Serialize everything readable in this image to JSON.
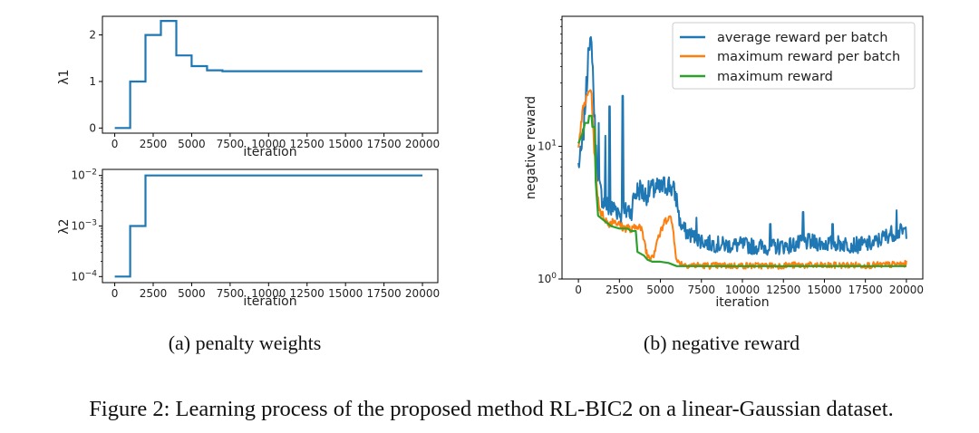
{
  "subcaptions": {
    "a": "(a) penalty weights",
    "b": "(b) negative reward"
  },
  "figure_caption": "Figure 2: Learning process of the proposed method RL-BIC2 on a linear-Gaussian dataset.",
  "chart_data": [
    {
      "id": "lambda1",
      "type": "line",
      "xlabel": "iteration",
      "ylabel": "λ1",
      "xlim": [
        -800,
        21000
      ],
      "ylim": [
        -0.11,
        2.4
      ],
      "xticks": [
        0,
        2500,
        5000,
        7500,
        10000,
        12500,
        15000,
        17500,
        20000
      ],
      "yticks": [
        0,
        1,
        2
      ],
      "color": "#1f77b4",
      "series": [
        {
          "x": [
            0,
            1000,
            1000,
            2000,
            2000,
            3000,
            3000,
            4000,
            4000,
            5000,
            5000,
            6000,
            6000,
            7000,
            7000,
            20000
          ],
          "y": [
            0,
            0,
            1,
            1,
            2,
            2,
            2.3,
            2.3,
            1.56,
            1.56,
            1.33,
            1.33,
            1.24,
            1.24,
            1.22,
            1.22
          ]
        }
      ]
    },
    {
      "id": "lambda2",
      "type": "line",
      "scale_y": "log",
      "xlabel": "iteration",
      "ylabel": "λ2",
      "xlim": [
        -800,
        21000
      ],
      "ylim_log10": [
        -4.12,
        -1.88
      ],
      "xticks": [
        0,
        2500,
        5000,
        7500,
        10000,
        12500,
        15000,
        17500,
        20000
      ],
      "yticks": [
        0.0001,
        0.001,
        0.01
      ],
      "ytick_labels": [
        {
          "base": "10",
          "exp": "−4"
        },
        {
          "base": "10",
          "exp": "−3"
        },
        {
          "base": "10",
          "exp": "−2"
        }
      ],
      "color": "#1f77b4",
      "series": [
        {
          "x": [
            0,
            1000,
            1000,
            2000,
            2000,
            20000
          ],
          "y": [
            0.0001,
            0.0001,
            0.001,
            0.001,
            0.01,
            0.01
          ]
        }
      ]
    },
    {
      "id": "negreward",
      "type": "line",
      "scale_y": "log",
      "xlabel": "iteration",
      "ylabel": "negative reward",
      "xlim": [
        -1000,
        21000
      ],
      "ylim_log10": [
        0,
        1.98
      ],
      "xticks": [
        0,
        2500,
        5000,
        7500,
        10000,
        12500,
        15000,
        17500,
        20000
      ],
      "yticks": [
        1,
        10
      ],
      "ytick_labels": [
        {
          "base": "10",
          "exp": "0"
        },
        {
          "base": "10",
          "exp": "1"
        }
      ],
      "legend_position": "top-right",
      "series": [
        {
          "name": "average reward per batch",
          "color": "#1f77b4",
          "points": [
            [
              0,
              7.2
            ],
            [
              150,
              8.5
            ],
            [
              300,
              12
            ],
            [
              450,
              25
            ],
            [
              600,
              40
            ],
            [
              750,
              60
            ],
            [
              850,
              50
            ],
            [
              950,
              20
            ],
            [
              1100,
              8
            ],
            [
              1250,
              5
            ],
            [
              1400,
              4.3
            ],
            [
              1600,
              3.7
            ],
            [
              1800,
              3.5
            ],
            [
              2000,
              3.3
            ],
            [
              2200,
              3.5
            ],
            [
              2400,
              3.3
            ],
            [
              2600,
              3.1
            ],
            [
              2800,
              3.0
            ],
            [
              3000,
              3.4
            ],
            [
              3200,
              3.2
            ],
            [
              3400,
              4.2
            ],
            [
              3600,
              4.6
            ],
            [
              3800,
              4.8
            ],
            [
              4000,
              4.3
            ],
            [
              4200,
              4.4
            ],
            [
              4400,
              4.7
            ],
            [
              4600,
              4.6
            ],
            [
              4800,
              4.8
            ],
            [
              5000,
              4.7
            ],
            [
              5200,
              5.0
            ],
            [
              5500,
              5.2
            ],
            [
              5800,
              4.6
            ],
            [
              6000,
              4.0
            ],
            [
              6200,
              2.6
            ],
            [
              6500,
              2.3
            ],
            [
              7000,
              2.1
            ],
            [
              7500,
              1.95
            ],
            [
              8000,
              1.85
            ],
            [
              9000,
              1.8
            ],
            [
              10000,
              1.8
            ],
            [
              11000,
              1.75
            ],
            [
              12000,
              1.75
            ],
            [
              13000,
              1.8
            ],
            [
              14000,
              1.9
            ],
            [
              15000,
              1.85
            ],
            [
              16000,
              1.85
            ],
            [
              17000,
              1.8
            ],
            [
              18000,
              1.85
            ],
            [
              19000,
              2.2
            ],
            [
              20000,
              2.3
            ]
          ],
          "spikes": [
            [
              620,
              55
            ],
            [
              1000,
              14
            ],
            [
              1250,
              15
            ],
            [
              1650,
              12
            ],
            [
              1900,
              20
            ],
            [
              2700,
              24
            ],
            [
              4550,
              5.6
            ],
            [
              7200,
              2.9
            ],
            [
              11700,
              2.6
            ],
            [
              13700,
              3.2
            ],
            [
              15500,
              2.6
            ],
            [
              19400,
              3.3
            ]
          ]
        },
        {
          "name": "maximum reward per batch",
          "color": "#ff7f0e",
          "points": [
            [
              0,
              10.5
            ],
            [
              150,
              14
            ],
            [
              300,
              20
            ],
            [
              450,
              22
            ],
            [
              600,
              25
            ],
            [
              750,
              28
            ],
            [
              850,
              19
            ],
            [
              950,
              10
            ],
            [
              1100,
              5.2
            ],
            [
              1250,
              3.6
            ],
            [
              1400,
              3.1
            ],
            [
              1600,
              2.9
            ],
            [
              1800,
              2.6
            ],
            [
              2000,
              2.7
            ],
            [
              2200,
              2.8
            ],
            [
              2400,
              2.6
            ],
            [
              2600,
              2.5
            ],
            [
              2800,
              2.4
            ],
            [
              3000,
              2.5
            ],
            [
              3200,
              2.3
            ],
            [
              3400,
              2.4
            ],
            [
              3600,
              2.6
            ],
            [
              3800,
              2.4
            ],
            [
              4000,
              2.0
            ],
            [
              4200,
              1.5
            ],
            [
              4400,
              1.5
            ],
            [
              4600,
              1.55
            ],
            [
              4800,
              2.0
            ],
            [
              5000,
              2.2
            ],
            [
              5200,
              2.6
            ],
            [
              5500,
              3.0
            ],
            [
              5700,
              2.7
            ],
            [
              5850,
              2.0
            ],
            [
              6000,
              1.35
            ],
            [
              6500,
              1.28
            ],
            [
              7000,
              1.27
            ],
            [
              8000,
              1.26
            ],
            [
              9000,
              1.26
            ],
            [
              10000,
              1.26
            ],
            [
              11000,
              1.26
            ],
            [
              12000,
              1.26
            ],
            [
              13000,
              1.27
            ],
            [
              14000,
              1.27
            ],
            [
              15000,
              1.26
            ],
            [
              16000,
              1.27
            ],
            [
              17000,
              1.27
            ],
            [
              18000,
              1.27
            ],
            [
              19000,
              1.28
            ],
            [
              20000,
              1.3
            ]
          ]
        },
        {
          "name": "maximum reward",
          "color": "#2ca02c",
          "points": [
            [
              0,
              10.5
            ],
            [
              300,
              13
            ],
            [
              400,
              15
            ],
            [
              600,
              15
            ],
            [
              650,
              17
            ],
            [
              800,
              17
            ],
            [
              850,
              14
            ],
            [
              1000,
              14
            ],
            [
              1050,
              5.5
            ],
            [
              1200,
              3.0
            ],
            [
              1500,
              2.8
            ],
            [
              2000,
              2.5
            ],
            [
              2500,
              2.4
            ],
            [
              3000,
              2.4
            ],
            [
              3200,
              2.3
            ],
            [
              3500,
              2.3
            ],
            [
              3600,
              1.6
            ],
            [
              4000,
              1.5
            ],
            [
              4200,
              1.4
            ],
            [
              4500,
              1.35
            ],
            [
              5000,
              1.35
            ],
            [
              5500,
              1.32
            ],
            [
              6000,
              1.25
            ],
            [
              20000,
              1.25
            ]
          ]
        }
      ]
    }
  ]
}
